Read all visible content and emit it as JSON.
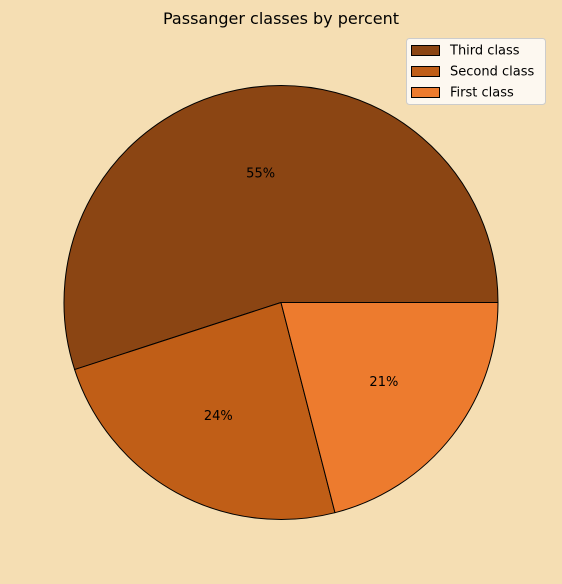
{
  "chart_data": {
    "type": "pie",
    "title": "Passanger classes by percent",
    "categories": [
      "Third class",
      "Second class",
      "First class"
    ],
    "values": [
      55,
      24,
      21
    ],
    "value_labels": [
      "55%",
      "24%",
      "21%"
    ],
    "colors": [
      "#8b4513",
      "#c05e17",
      "#ed7b2e"
    ],
    "edge_color": "#000000",
    "background_color": "#f5deb3",
    "legend_background": "#fdf8f0",
    "start_angle_deg": 0,
    "direction": "counterclockwise",
    "legend_position": "top-right"
  }
}
